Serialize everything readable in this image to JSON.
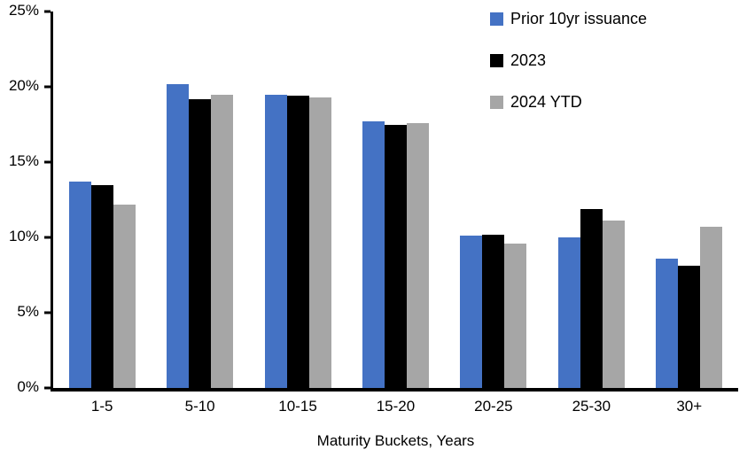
{
  "chart_data": {
    "type": "bar",
    "title": "",
    "xlabel": "Maturity Buckets, Years",
    "ylabel": "",
    "ylim": [
      0,
      25
    ],
    "yticks": [
      0,
      5,
      10,
      15,
      20,
      25
    ],
    "ytick_suffix": "%",
    "grid": false,
    "legend_position": "top-right",
    "categories": [
      "1-5",
      "5-10",
      "10-15",
      "15-20",
      "20-25",
      "25-30",
      "30+"
    ],
    "series": [
      {
        "name": "Prior 10yr issuance",
        "color": "#4472C4",
        "values": [
          13.7,
          20.2,
          19.5,
          17.7,
          10.1,
          10.0,
          8.6
        ]
      },
      {
        "name": "2023",
        "color": "#000000",
        "values": [
          13.5,
          19.2,
          19.4,
          17.5,
          10.2,
          11.9,
          8.1
        ]
      },
      {
        "name": "2024 YTD",
        "color": "#A6A6A6",
        "values": [
          12.2,
          19.5,
          19.3,
          17.6,
          9.6,
          11.1,
          10.7
        ]
      }
    ]
  },
  "colors": {
    "axis": "#000000",
    "text": "#000000",
    "background": "#FFFFFF",
    "accent_blue": "#4472C4",
    "series_black": "#000000",
    "series_gray": "#A6A6A6"
  }
}
